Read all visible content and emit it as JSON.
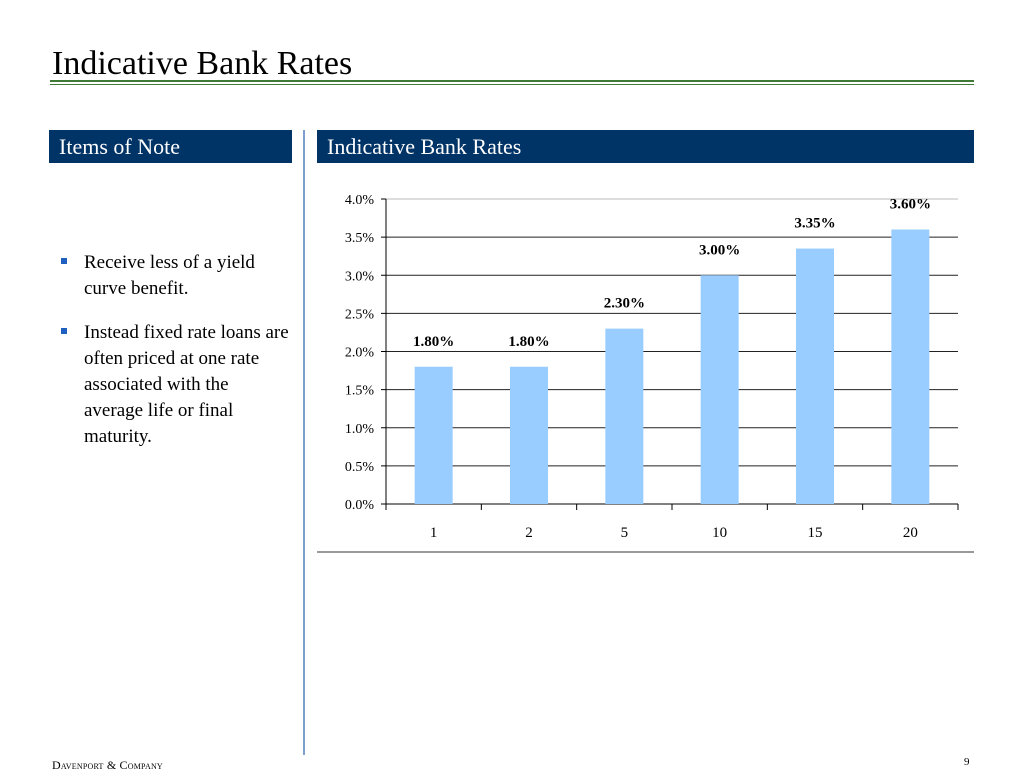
{
  "page": {
    "title": "Indicative Bank Rates",
    "footer_company": "Davenport & Company",
    "page_number": "9"
  },
  "left_panel": {
    "header": "Items of Note",
    "bullets": [
      "Receive less of a yield curve benefit.",
      "Instead fixed rate loans are often  priced at one rate associated with the average life or final maturity."
    ]
  },
  "right_panel": {
    "header": "Indicative Bank Rates"
  },
  "colors": {
    "header_bg": "#003366",
    "bar": "#99ccff",
    "title_rule": "#3e7a34",
    "divider": "#7fa0cf"
  },
  "chart_data": {
    "type": "bar",
    "categories": [
      "1",
      "2",
      "5",
      "10",
      "15",
      "20"
    ],
    "values": [
      1.8,
      1.8,
      2.3,
      3.0,
      3.35,
      3.6
    ],
    "data_labels": [
      "1.80%",
      "1.80%",
      "2.30%",
      "3.00%",
      "3.35%",
      "3.60%"
    ],
    "y_ticks": [
      "0.0%",
      "0.5%",
      "1.0%",
      "1.5%",
      "2.0%",
      "2.5%",
      "3.0%",
      "3.5%",
      "4.0%"
    ],
    "ylim": [
      0,
      4.0
    ],
    "grid": true,
    "legend": "none"
  }
}
